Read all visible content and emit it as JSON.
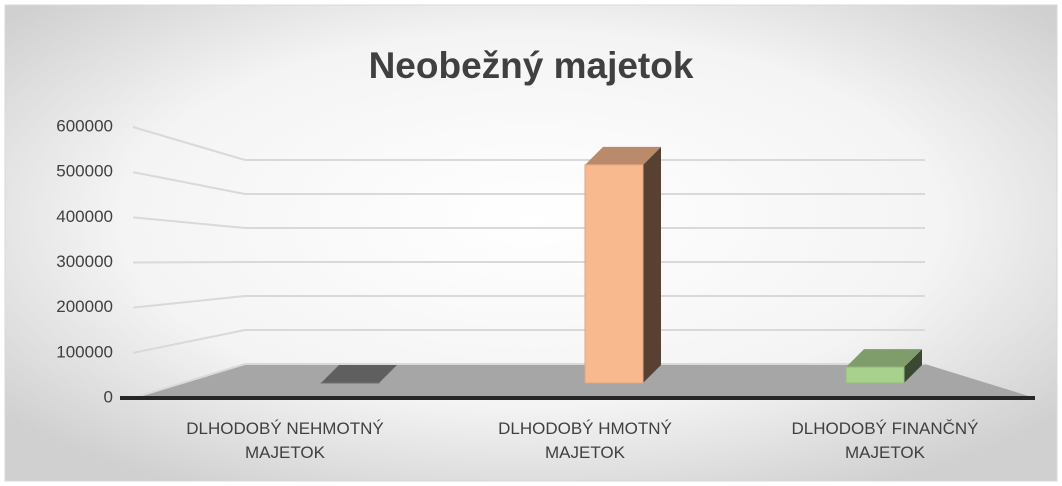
{
  "chart_data": {
    "type": "bar3d",
    "title": "Neobežný majetok",
    "categories": [
      "DLHODOBÝ NEHMOTNÝ MAJETOK",
      "DLHODOBÝ HMOTNÝ MAJETOK",
      "DLHODOBÝ FINANČNÝ MAJETOK"
    ],
    "values": [
      0,
      550000,
      40000
    ],
    "colors": [
      "#7f7f7f",
      "#f8b98f",
      "#a9d18e"
    ],
    "ylim": [
      0,
      600000
    ],
    "yticks": [
      0,
      100000,
      200000,
      300000,
      400000,
      500000,
      600000
    ],
    "grid": true
  }
}
